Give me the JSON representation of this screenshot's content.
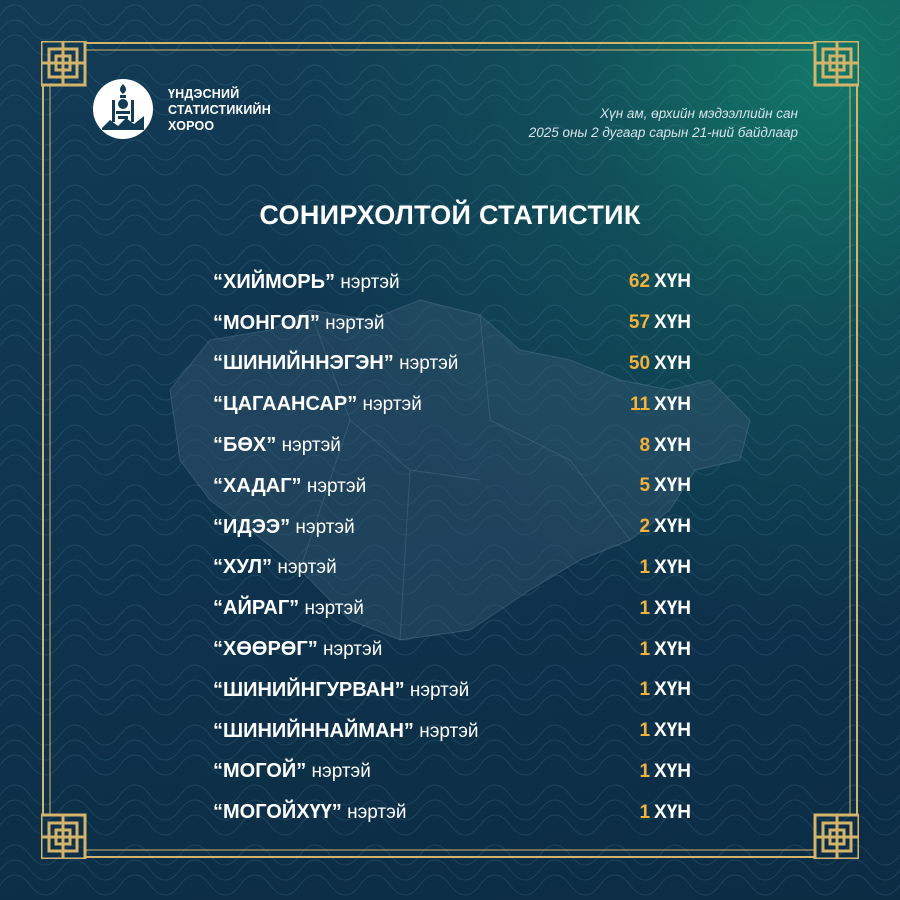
{
  "header": {
    "org_name_lines": [
      "ҮНДЭСНИЙ",
      "СТАТИСТИКИЙН",
      "ХОРОО"
    ],
    "source_line1": "Хүн ам, өрхийн мэдээллийн сан",
    "source_line2": "2025 оны 2 дугаар сарын 21-ний байдлаар"
  },
  "title": "СОНИРХОЛТОЙ СТАТИСТИК",
  "unit_label": "ХҮН",
  "rows": [
    {
      "name": "“ХИЙМОРЬ”",
      "suffix": "нэртэй",
      "count": "62"
    },
    {
      "name": "“МОНГОЛ”",
      "suffix": "нэртэй",
      "count": "57"
    },
    {
      "name": "“ШИНИЙННЭГЭН”",
      "suffix": "нэртэй",
      "count": "50"
    },
    {
      "name": "“ЦАГААНСАР”",
      "suffix": "нэртэй",
      "count": "11"
    },
    {
      "name": "“БӨХ”",
      "suffix": "нэртэй",
      "count": "8"
    },
    {
      "name": "“ХАДАГ”",
      "suffix": "нэртэй",
      "count": "5"
    },
    {
      "name": "“ИДЭЭ”",
      "suffix": "нэртэй",
      "count": "2"
    },
    {
      "name": "“ХУЛ”",
      "suffix": "нэртэй",
      "count": "1"
    },
    {
      "name": "“АЙРАГ”",
      "suffix": "нэртэй",
      "count": "1"
    },
    {
      "name": "“ХӨӨРӨГ”",
      "suffix": "нэртэй",
      "count": "1"
    },
    {
      "name": "“ШИНИЙНГУРВАН”",
      "suffix": "нэртэй",
      "count": "1"
    },
    {
      "name": "“ШИНИЙННАЙМАН”",
      "suffix": "нэртэй",
      "count": "1"
    },
    {
      "name": "“МОГОЙ”",
      "suffix": "нэртэй",
      "count": "1"
    },
    {
      "name": "“МОГОЙХҮҮ”",
      "suffix": "нэртэй",
      "count": "1"
    }
  ],
  "colors": {
    "background": "#0f3550",
    "accent_number": "#f2b23b",
    "frame_gold": "#d4b36a",
    "text": "#ffffff"
  },
  "icons": [
    "soyombo-logo-icon",
    "mongolia-map-silhouette",
    "knot-corner-ornament"
  ]
}
